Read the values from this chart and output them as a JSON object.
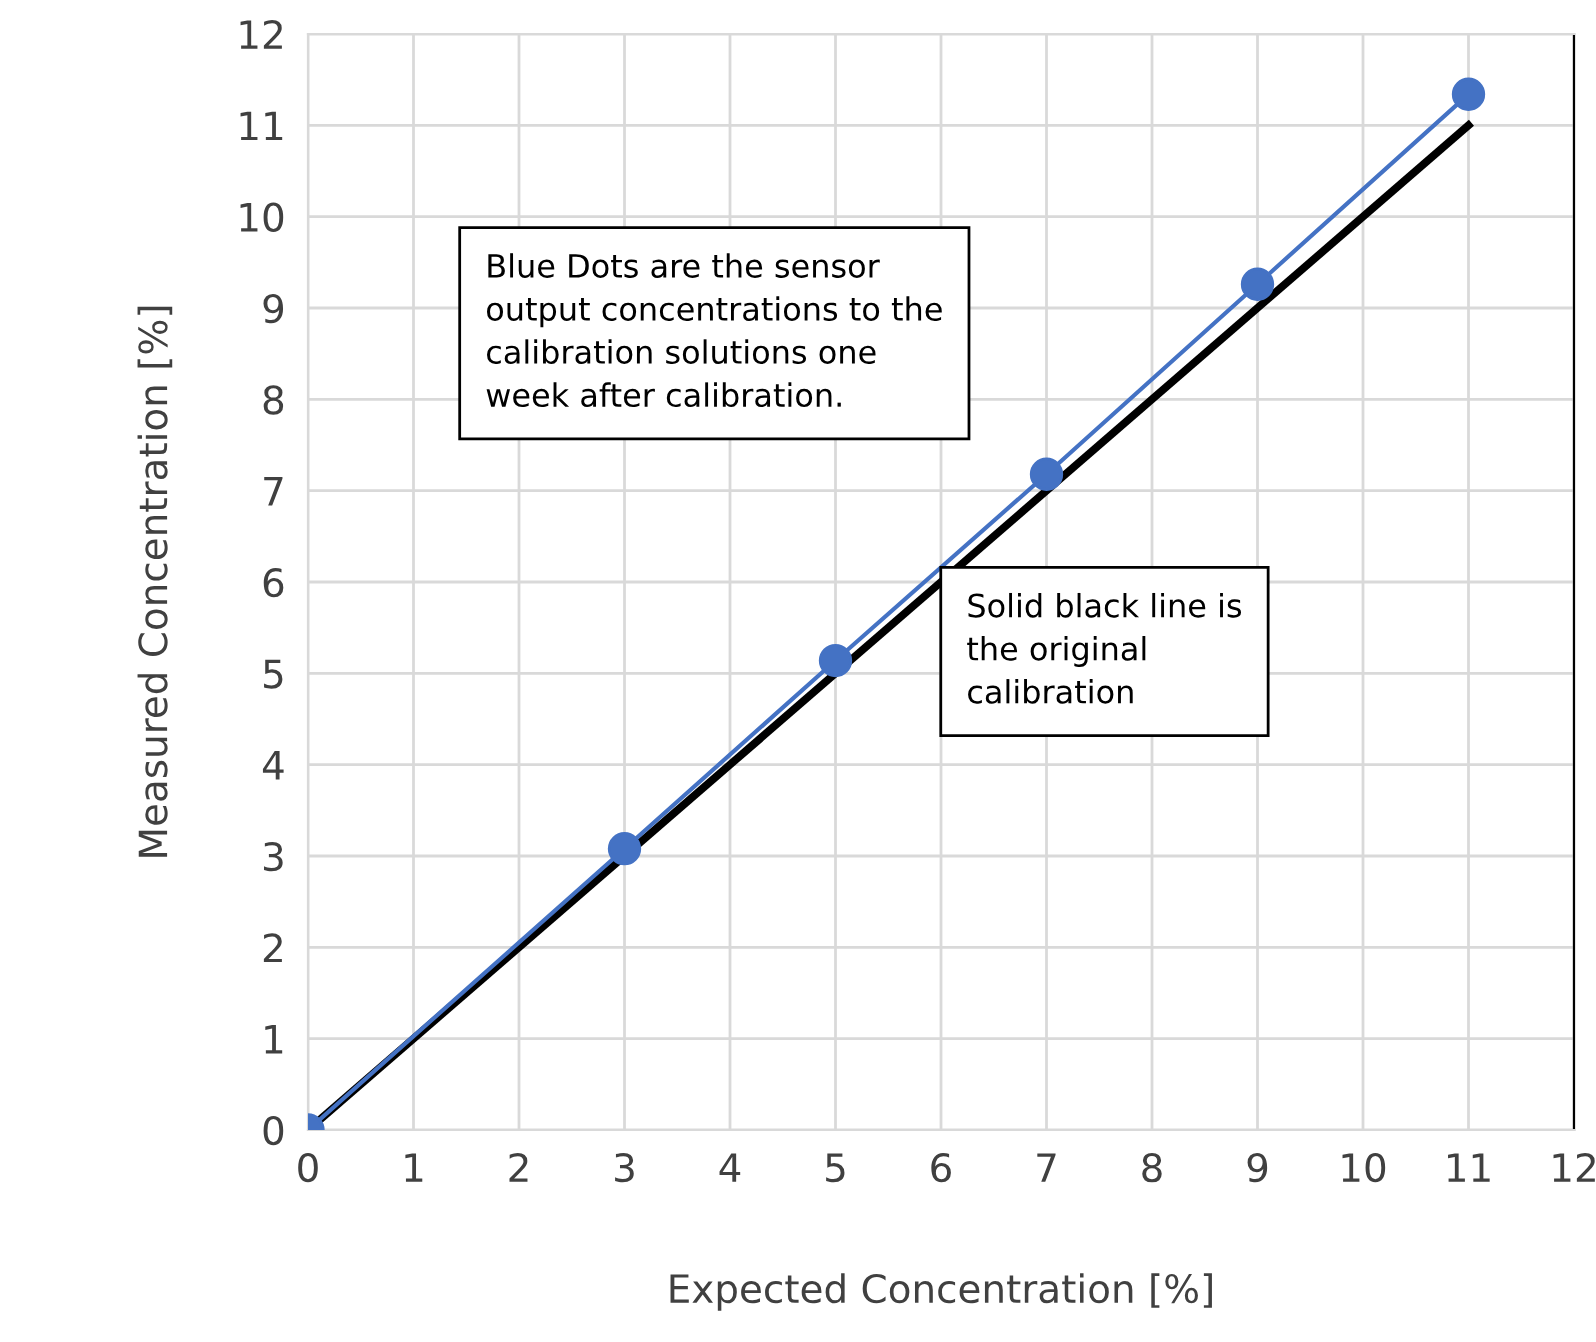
{
  "chart_data": {
    "type": "line",
    "xlabel": "Expected Concentration [%]",
    "ylabel": "Measured Concentration [%]",
    "series": [
      {
        "color": "#4472c4",
        "marker": "circle",
        "x": [
          0,
          3,
          5,
          7,
          9,
          11
        ],
        "values": [
          0,
          3.08,
          5.14,
          7.18,
          9.26,
          11.34
        ]
      },
      {
        "color": "#000000",
        "marker": "none",
        "x": [
          0,
          11
        ],
        "values": [
          0,
          11
        ]
      }
    ],
    "xlim": [
      0,
      12
    ],
    "ylim": [
      0,
      12
    ],
    "xticks": [
      0,
      1,
      2,
      3,
      4,
      5,
      6,
      7,
      8,
      9,
      10,
      11,
      12
    ],
    "yticks": [
      0,
      1,
      2,
      3,
      4,
      5,
      6,
      7,
      8,
      9,
      10,
      11,
      12
    ],
    "grid": true,
    "legend": false,
    "annotations": [
      "Blue Dots are the sensor\noutput concentrations to the\ncalibration solutions one\nweek after calibration.",
      "Solid black line is\nthe original\ncalibration"
    ]
  }
}
